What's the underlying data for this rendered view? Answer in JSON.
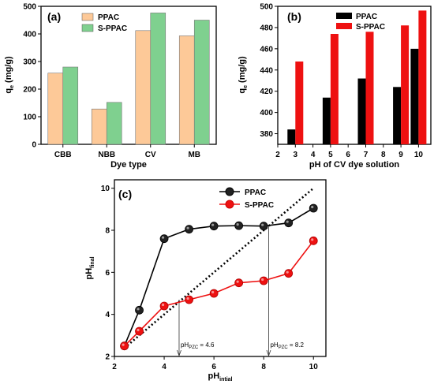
{
  "colors": {
    "ppac_a": "#FDC998",
    "sppac_a": "#7FD08F",
    "ppac_b": "#000000",
    "sppac_b": "#EE1111",
    "ppac_c": "#000000",
    "sppac_c": "#EE1111"
  },
  "chart_data": [
    {
      "type": "bar",
      "panel_label": "(a)",
      "categories": [
        "CBB",
        "NBB",
        "CV",
        "MB"
      ],
      "series": [
        {
          "name": "PPAC",
          "values": [
            258,
            128,
            412,
            393
          ]
        },
        {
          "name": "S-PPAC",
          "values": [
            280,
            152,
            476,
            450
          ]
        }
      ],
      "xlabel": "Dye type",
      "ylabel_main": "q",
      "ylabel_sub": "e",
      "ylabel_unit": "(mg/g)",
      "ylim": [
        0,
        500
      ],
      "yticks": [
        "0",
        "100",
        "200",
        "300",
        "400",
        "500"
      ],
      "legend": "top-center",
      "grid": false
    },
    {
      "type": "bar",
      "panel_label": "(b)",
      "categories": [
        "3",
        "5",
        "7",
        "9",
        "10"
      ],
      "x": [
        3,
        5,
        7,
        9,
        10
      ],
      "series": [
        {
          "name": "PPAC",
          "values": [
            384,
            414,
            432,
            424,
            460
          ]
        },
        {
          "name": "S-PPAC",
          "values": [
            448,
            474,
            476,
            482,
            496
          ]
        }
      ],
      "xlabel": "pH of CV dye solution",
      "ylabel_main": "q",
      "ylabel_sub": "e",
      "ylabel_unit": "(mg/g)",
      "xlim": [
        2,
        10.7
      ],
      "xticks": [
        "2",
        "3",
        "4",
        "5",
        "6",
        "7",
        "8",
        "9",
        "10"
      ],
      "ylim": [
        370,
        500
      ],
      "yticks": [
        "380",
        "400",
        "420",
        "440",
        "460",
        "480",
        "500"
      ],
      "legend": "top-left",
      "grid": false
    },
    {
      "type": "line",
      "panel_label": "(c)",
      "series": [
        {
          "name": "PPAC",
          "x": [
            2.4,
            3,
            4,
            5,
            6,
            7,
            8,
            9,
            10
          ],
          "y": [
            2.5,
            4.2,
            7.6,
            8.05,
            8.2,
            8.22,
            8.2,
            8.35,
            9.05
          ]
        },
        {
          "name": "S-PPAC",
          "x": [
            2.4,
            3,
            4,
            5,
            6,
            7,
            8,
            9,
            10
          ],
          "y": [
            2.5,
            3.2,
            4.4,
            4.7,
            5.0,
            5.5,
            5.6,
            5.95,
            7.5
          ]
        }
      ],
      "reference_line": {
        "x": [
          2.4,
          10
        ],
        "y": [
          2.4,
          10
        ]
      },
      "annotations": [
        {
          "main": "pH",
          "sub": "PZC",
          "value": " = 4.6",
          "x": 4.6
        },
        {
          "main": "pH",
          "sub": "PZC",
          "value": " = 8.2",
          "x": 8.2
        }
      ],
      "xlabel_main": "pH",
      "xlabel_sub": "intial",
      "ylabel_main": "pH",
      "ylabel_sub": "final",
      "xlim": [
        2,
        10.5
      ],
      "ylim": [
        2,
        10.4
      ],
      "xticks": [
        "2",
        "4",
        "6",
        "8",
        "10"
      ],
      "yticks": [
        "2",
        "4",
        "6",
        "8",
        "10"
      ],
      "legend": "top-right",
      "grid": false
    }
  ]
}
